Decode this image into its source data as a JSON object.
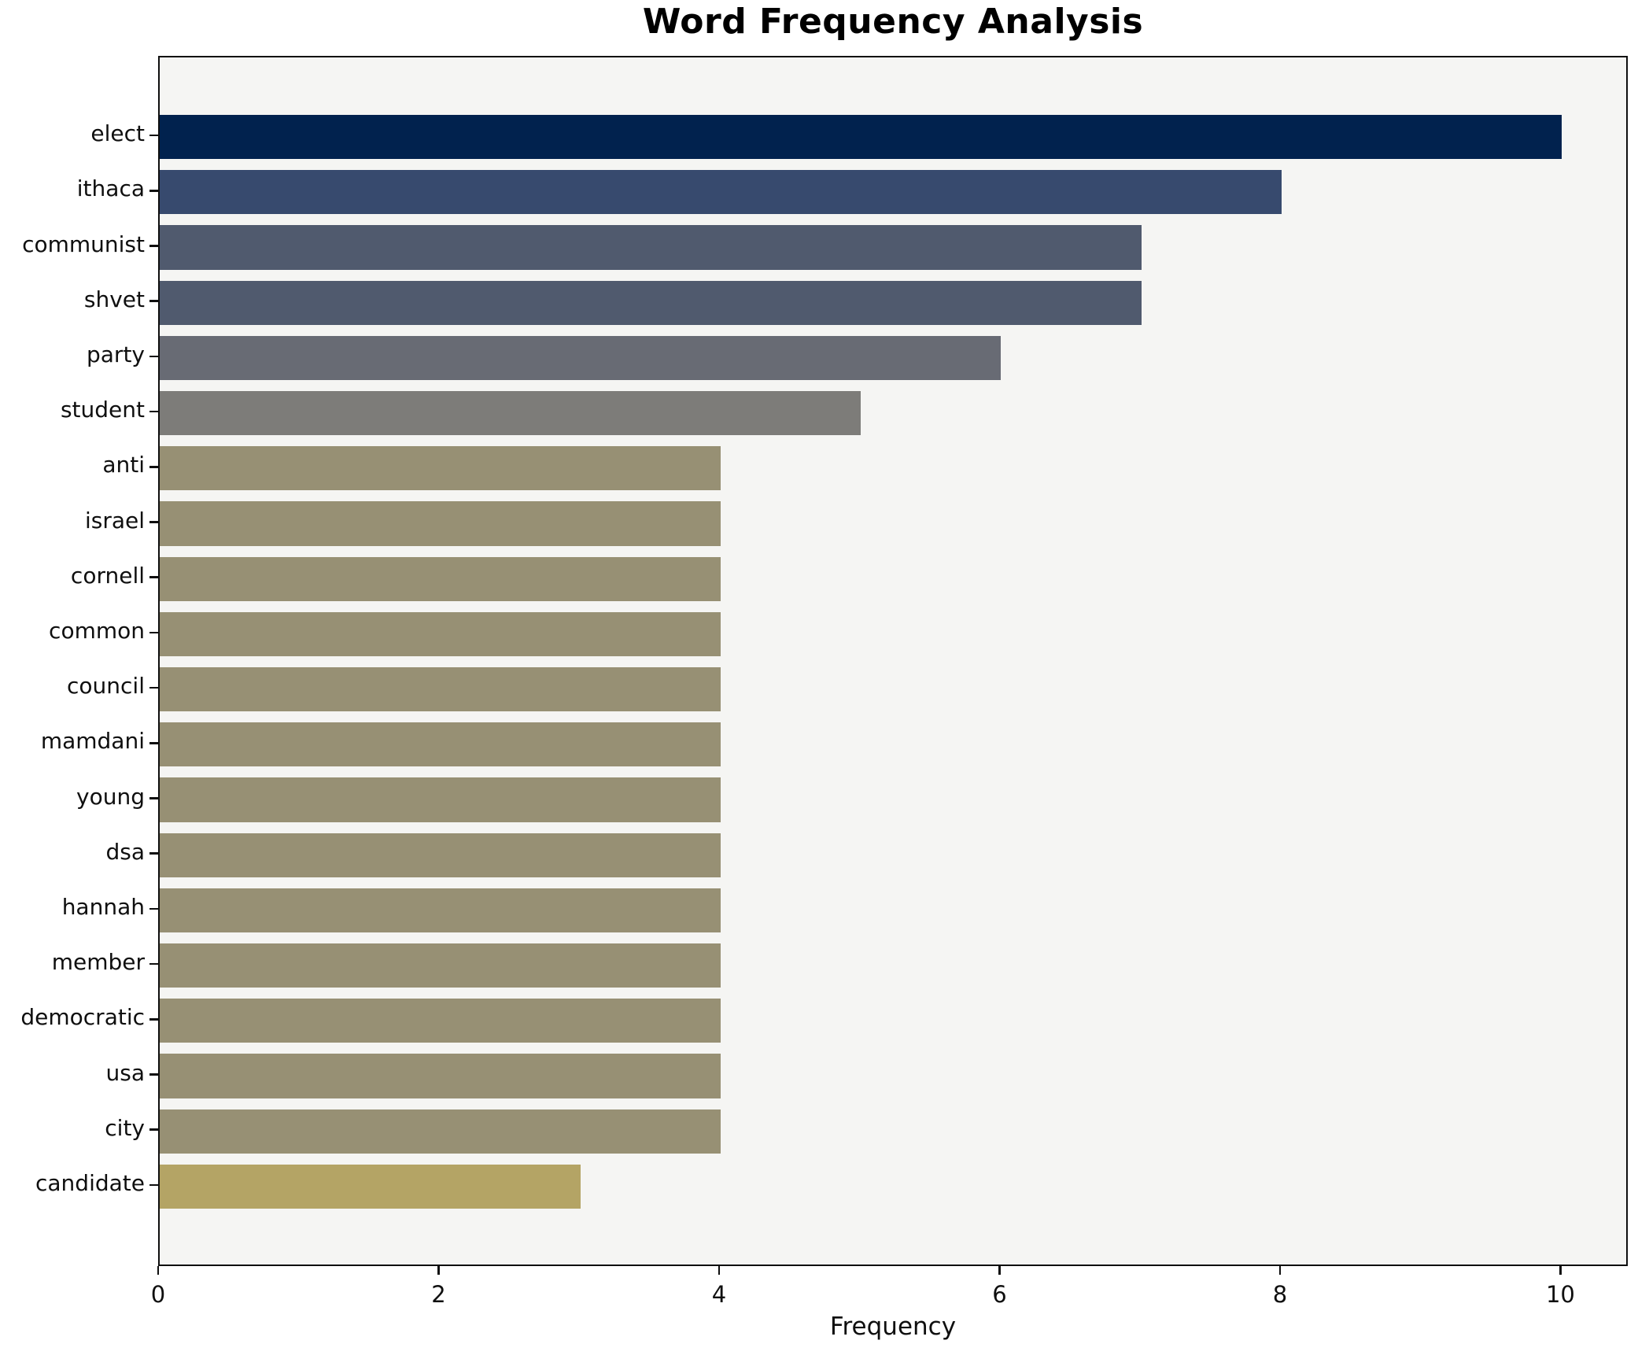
{
  "title": "Word Frequency Analysis",
  "chart_data": {
    "type": "bar",
    "orientation": "horizontal",
    "title": "Word Frequency Analysis",
    "xlabel": "Frequency",
    "ylabel": "",
    "categories": [
      "elect",
      "ithaca",
      "communist",
      "shvet",
      "party",
      "student",
      "anti",
      "israel",
      "cornell",
      "common",
      "council",
      "mamdani",
      "young",
      "dsa",
      "hannah",
      "member",
      "democratic",
      "usa",
      "city",
      "candidate"
    ],
    "values": [
      10,
      8,
      7,
      7,
      6,
      5,
      4,
      4,
      4,
      4,
      4,
      4,
      4,
      4,
      4,
      4,
      4,
      4,
      4,
      3
    ],
    "bar_colors": [
      "#01224e",
      "#374a6e",
      "#505a6e",
      "#505a6e",
      "#686b74",
      "#7d7c79",
      "#979074",
      "#979074",
      "#979074",
      "#979074",
      "#979074",
      "#979074",
      "#979074",
      "#979074",
      "#979074",
      "#979074",
      "#979074",
      "#979074",
      "#979074",
      "#b4a465"
    ],
    "xlim": [
      0,
      10.48
    ],
    "xticks": [
      0,
      2,
      4,
      6,
      8,
      10
    ],
    "grid": false,
    "legend": null,
    "colors": {
      "plot_background": "#f5f5f3",
      "figure_background": "#ffffff",
      "spine": "#0f0f0f",
      "text": "#0f0f0f"
    }
  }
}
